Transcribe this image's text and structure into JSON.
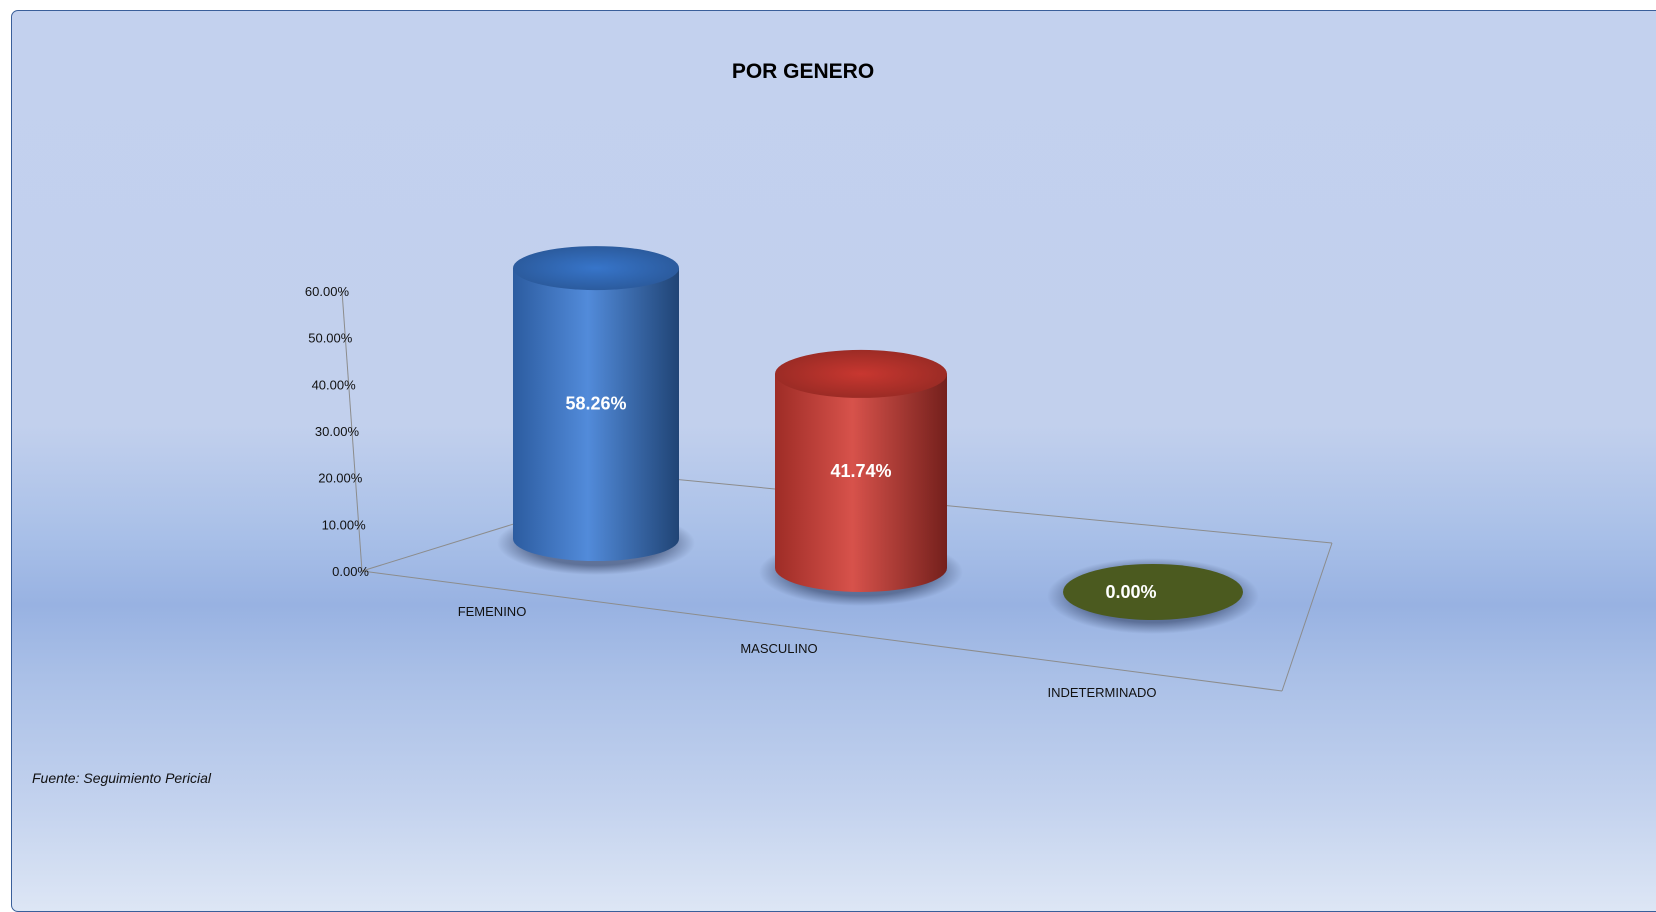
{
  "chart_data": {
    "type": "bar",
    "style": "3d-cylinder",
    "title": "POR GENERO",
    "categories": [
      "FEMENINO",
      "MASCULINO",
      "INDETERMINADO"
    ],
    "values": [
      58.26,
      41.74,
      0.0
    ],
    "data_labels": [
      "58.26%",
      "41.74%",
      "0.00%"
    ],
    "colors": [
      "#3a7bd5",
      "#d23a32",
      "#4b5a1f"
    ],
    "ylim": [
      0,
      60
    ],
    "y_ticks": [
      0,
      10,
      20,
      30,
      40,
      50,
      60
    ],
    "y_tick_labels": [
      "0.00%",
      "10.00%",
      "20.00%",
      "30.00%",
      "40.00%",
      "50.00%",
      "60.00%"
    ],
    "xlabel": "",
    "ylabel": "",
    "grid": false,
    "legend": "none"
  },
  "footer": {
    "source": "Fuente: Seguimiento Pericial"
  }
}
